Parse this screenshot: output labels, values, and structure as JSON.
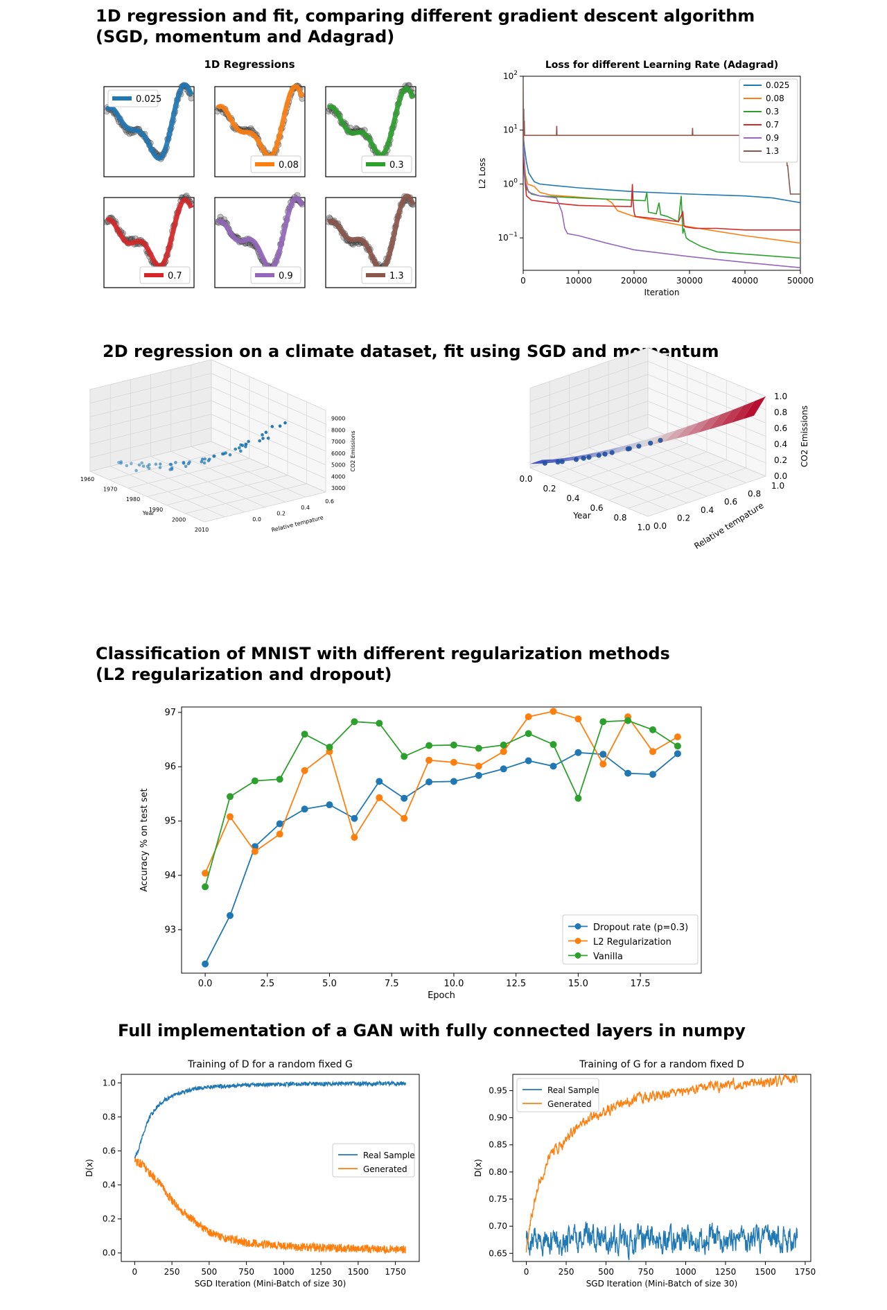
{
  "sections": {
    "s1_line1": "1D regression and fit, comparing different gradient descent algorithm",
    "s1_line2": "(SGD, momentum and Adagrad)",
    "s2": "2D regression on a climate dataset, fit using SGD and momentum",
    "s3_line1": "Classification of MNIST with different regularization methods",
    "s3_line2": "(L2 regularization and dropout)",
    "s4": "Full implementation of a GAN with fully connected layers in numpy"
  },
  "colors": {
    "blue": "#1f77b4",
    "orange": "#ff7f0e",
    "green": "#2ca02c",
    "red": "#d62728",
    "purple": "#9467bd",
    "brown": "#8c564b"
  },
  "chart_data": [
    {
      "id": "regressions_1d",
      "type": "line",
      "title": "1D Regressions",
      "panels": [
        {
          "label": "0.025",
          "color": "#1f77b4"
        },
        {
          "label": "0.08",
          "color": "#ff7f0e"
        },
        {
          "label": "0.3",
          "color": "#2ca02c"
        },
        {
          "label": "0.7",
          "color": "#d62728"
        },
        {
          "label": "0.9",
          "color": "#9467bd"
        },
        {
          "label": "1.3",
          "color": "#8c564b"
        }
      ]
    },
    {
      "id": "adagrad_loss",
      "type": "line",
      "title": "Loss for different Learning Rate (Adagrad)",
      "xlabel": "Iteration",
      "ylabel": "L2 Loss",
      "xlim": [
        0,
        50000
      ],
      "ylim": [
        0.025,
        100
      ],
      "yscale": "log",
      "xticks": [
        0,
        10000,
        20000,
        30000,
        40000,
        50000
      ],
      "yticks": [
        {
          "value": 100,
          "base": "10",
          "exp": "2"
        },
        {
          "value": 10,
          "base": "10",
          "exp": "1"
        },
        {
          "value": 1,
          "base": "10",
          "exp": "0"
        },
        {
          "value": 0.1,
          "base": "10",
          "exp": "−1"
        }
      ],
      "legend": "top-right",
      "series": [
        {
          "name": "0.025",
          "color": "#1f77b4",
          "x": [
            0,
            200,
            600,
            1000,
            2000,
            3000,
            5000,
            10000,
            20000,
            30000,
            40000,
            45000,
            50000
          ],
          "y": [
            8,
            5,
            2.5,
            1.6,
            1.1,
            1.0,
            0.95,
            0.85,
            0.72,
            0.65,
            0.6,
            0.55,
            0.45
          ]
        },
        {
          "name": "0.08",
          "color": "#ff7f0e",
          "x": [
            0,
            200,
            400,
            800,
            2000,
            3000,
            5000,
            10000,
            15000,
            16000,
            17000,
            20000,
            25000,
            30000,
            40000,
            50000
          ],
          "y": [
            8,
            3,
            1.5,
            1.0,
            0.9,
            0.7,
            0.62,
            0.57,
            0.52,
            0.45,
            0.32,
            0.25,
            0.2,
            0.16,
            0.11,
            0.08
          ]
        },
        {
          "name": "0.3",
          "color": "#2ca02c",
          "x": [
            0,
            200,
            600,
            1500,
            3000,
            10000,
            20000,
            22000,
            22300,
            22600,
            24000,
            24500,
            24800,
            26000,
            28000,
            28500,
            28800,
            29000,
            29400,
            30000,
            32000,
            35000,
            40000,
            50000
          ],
          "y": [
            8,
            2,
            0.8,
            0.65,
            0.6,
            0.55,
            0.5,
            0.49,
            0.7,
            0.3,
            0.28,
            0.45,
            0.27,
            0.25,
            0.2,
            0.6,
            0.12,
            0.15,
            0.1,
            0.09,
            0.07,
            0.055,
            0.05,
            0.042
          ]
        },
        {
          "name": "0.7",
          "color": "#d62728",
          "x": [
            0,
            200,
            600,
            1500,
            5000,
            10000,
            19500,
            19700,
            19800,
            20000,
            20200,
            25000,
            28000,
            28800,
            29000,
            29200,
            31000,
            35000,
            40000,
            50000
          ],
          "y": [
            8,
            1.5,
            0.6,
            0.5,
            0.45,
            0.4,
            0.38,
            1.0,
            0.5,
            0.3,
            0.25,
            0.22,
            0.2,
            0.3,
            0.17,
            0.16,
            0.15,
            0.15,
            0.14,
            0.14
          ]
        },
        {
          "name": "0.9",
          "color": "#9467bd",
          "x": [
            0,
            300,
            1000,
            3000,
            6000,
            7000,
            7500,
            8000,
            10000,
            15000,
            20000,
            30000,
            40000,
            50000
          ],
          "y": [
            8,
            1.2,
            0.7,
            0.6,
            0.55,
            0.3,
            0.15,
            0.12,
            0.11,
            0.08,
            0.06,
            0.045,
            0.035,
            0.028
          ]
        },
        {
          "name": "1.3",
          "color": "#8c564b",
          "x": [
            0,
            50,
            100,
            150,
            200,
            250,
            300,
            6000,
            6050,
            6100,
            30500,
            30550,
            30600,
            43000,
            43100,
            47500,
            47600,
            47700,
            48200,
            50000
          ],
          "y": [
            80,
            5,
            25,
            9,
            15,
            8,
            8,
            8,
            12,
            8,
            8,
            11,
            8,
            8,
            4,
            4,
            2.2,
            2.2,
            0.65,
            0.65
          ]
        }
      ]
    },
    {
      "id": "climate_scatter_3d",
      "type": "scatter",
      "xlabel": "Year",
      "ylabel": "Relative tempature",
      "zlabel": "CO2 Emissions",
      "xticks": [
        "1960",
        "1970",
        "1980",
        "1990",
        "2000",
        "2010"
      ],
      "yticks": [
        "0.0",
        "0.2",
        "0.4",
        "0.6"
      ],
      "zticks": [
        "3000",
        "4000",
        "5000",
        "6000",
        "7000",
        "8000",
        "9000"
      ]
    },
    {
      "id": "climate_surface_3d",
      "type": "area",
      "xlabel": "Year",
      "ylabel": "Relative tempature",
      "zlabel": "CO2 Emissions",
      "xticks": [
        "0.0",
        "0.2",
        "0.4",
        "0.6",
        "0.8",
        "1.0"
      ],
      "yticks": [
        "0.0",
        "0.2",
        "0.4",
        "0.6",
        "0.8",
        "1.0"
      ],
      "zticks": [
        "0.0",
        "0.2",
        "0.4",
        "0.6",
        "0.8",
        "1.0"
      ]
    },
    {
      "id": "mnist_accuracy",
      "type": "line",
      "xlabel": "Epoch",
      "ylabel": "Accuracy % on test set",
      "xlim": [
        -0.95,
        19.95
      ],
      "ylim": [
        92.2,
        97.1
      ],
      "xticks": [
        "0.0",
        "2.5",
        "5.0",
        "7.5",
        "10.0",
        "12.5",
        "15.0",
        "17.5"
      ],
      "yticks": [
        "93",
        "94",
        "95",
        "96",
        "97"
      ],
      "legend": "bottom-right",
      "x": [
        0,
        1,
        2,
        3,
        4,
        5,
        6,
        7,
        8,
        9,
        10,
        11,
        12,
        13,
        14,
        15,
        16,
        17,
        18,
        19
      ],
      "series": [
        {
          "name": "Dropout rate (p=0.3)",
          "color": "#1f77b4",
          "values": [
            92.37,
            93.26,
            94.53,
            94.95,
            95.22,
            95.3,
            95.05,
            95.73,
            95.42,
            95.72,
            95.73,
            95.84,
            95.96,
            96.11,
            96.01,
            96.26,
            96.23,
            95.88,
            95.86,
            96.24
          ]
        },
        {
          "name": "L2 Regularization",
          "color": "#ff7f0e",
          "values": [
            94.04,
            95.08,
            94.44,
            94.76,
            95.93,
            96.28,
            94.7,
            95.43,
            95.05,
            96.12,
            96.08,
            96.01,
            96.28,
            96.92,
            97.02,
            96.88,
            96.05,
            96.92,
            96.28,
            96.55
          ]
        },
        {
          "name": "Vanilla",
          "color": "#2ca02c",
          "values": [
            93.79,
            95.45,
            95.74,
            95.77,
            96.6,
            96.36,
            96.83,
            96.8,
            96.19,
            96.39,
            96.4,
            96.34,
            96.4,
            96.61,
            96.41,
            95.42,
            96.83,
            96.85,
            96.68,
            96.38
          ]
        }
      ]
    },
    {
      "id": "gan_train_d",
      "type": "line",
      "title": "Training of D for a random fixed G",
      "xlabel": "SGD Iteration (Mini-Batch of size 30)",
      "ylabel": "D(x)",
      "xlim": [
        -90,
        1910
      ],
      "ylim": [
        -0.05,
        1.05
      ],
      "xticks": [
        "0",
        "250",
        "500",
        "750",
        "1000",
        "1250",
        "1500",
        "1750"
      ],
      "yticks": [
        "0.0",
        "0.2",
        "0.4",
        "0.6",
        "0.8",
        "1.0"
      ],
      "legend": "center-right",
      "series": [
        {
          "name": "Real Sample",
          "color": "#1f77b4",
          "x": [
            0,
            25,
            50,
            100,
            150,
            200,
            300,
            400,
            500,
            700,
            900,
            1100,
            1400,
            1820
          ],
          "y": [
            0.56,
            0.6,
            0.68,
            0.8,
            0.86,
            0.9,
            0.94,
            0.965,
            0.975,
            0.985,
            0.99,
            0.993,
            0.995,
            0.997
          ],
          "noise": 0.012
        },
        {
          "name": "Generated",
          "color": "#ff7f0e",
          "x": [
            0,
            50,
            100,
            150,
            200,
            250,
            300,
            400,
            500,
            600,
            750,
            900,
            1100,
            1300,
            1500,
            1820
          ],
          "y": [
            0.54,
            0.52,
            0.47,
            0.43,
            0.37,
            0.31,
            0.26,
            0.19,
            0.12,
            0.09,
            0.06,
            0.05,
            0.035,
            0.03,
            0.025,
            0.02
          ],
          "noise": 0.025
        }
      ]
    },
    {
      "id": "gan_train_g",
      "type": "line",
      "title": "Training of G for a random fixed D",
      "xlabel": "SGD Iteration (Mini-Batch of size 30)",
      "ylabel": "D(x)",
      "xlim": [
        -85,
        1785
      ],
      "ylim": [
        0.635,
        0.98
      ],
      "xticks": [
        "0",
        "250",
        "500",
        "750",
        "1000",
        "1250",
        "1500",
        "1750"
      ],
      "yticks": [
        "0.65",
        "0.70",
        "0.75",
        "0.80",
        "0.85",
        "0.90",
        "0.95"
      ],
      "legend": "top-left",
      "series": [
        {
          "name": "Real Sample",
          "color": "#1f77b4",
          "x": [
            0,
            1700
          ],
          "y": [
            0.675,
            0.675
          ],
          "noise": 0.02
        },
        {
          "name": "Generated",
          "color": "#ff7f0e",
          "x": [
            0,
            30,
            80,
            150,
            250,
            350,
            450,
            550,
            700,
            900,
            1100,
            1300,
            1500,
            1700
          ],
          "y": [
            0.65,
            0.72,
            0.78,
            0.83,
            0.86,
            0.89,
            0.905,
            0.92,
            0.935,
            0.945,
            0.955,
            0.96,
            0.965,
            0.972
          ],
          "noise": 0.008
        }
      ]
    }
  ]
}
